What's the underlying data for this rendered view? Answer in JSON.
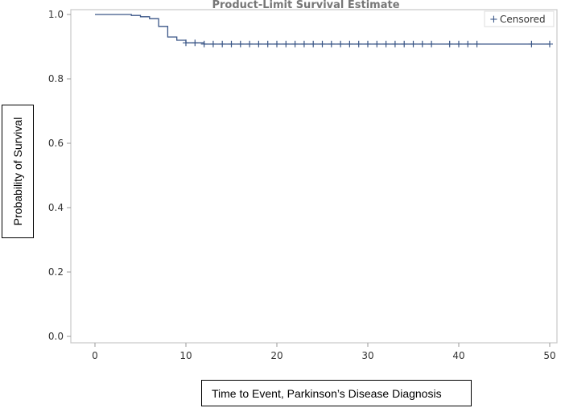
{
  "chart_data": {
    "type": "line",
    "title": "Product-Limit Survival Estimate",
    "xlabel": "Time to Event, Parkinson’s Disease Diagnosis",
    "ylabel": "Probability of Survival",
    "xlim": [
      0,
      50
    ],
    "ylim": [
      0,
      1
    ],
    "xticks": [
      "0",
      "10",
      "20",
      "30",
      "40",
      "50"
    ],
    "yticks": [
      "0.0",
      "0.2",
      "0.4",
      "0.6",
      "0.8",
      "1.0"
    ],
    "grid": false,
    "legend": {
      "position": "top-right",
      "entries": [
        "Censored"
      ]
    },
    "series_color": "#3a5687",
    "survival_steps": [
      {
        "x": 0,
        "y": 1.0
      },
      {
        "x": 4,
        "y": 0.997
      },
      {
        "x": 5,
        "y": 0.993
      },
      {
        "x": 6,
        "y": 0.987
      },
      {
        "x": 7,
        "y": 0.963
      },
      {
        "x": 8,
        "y": 0.93
      },
      {
        "x": 9,
        "y": 0.92
      },
      {
        "x": 10,
        "y": 0.912
      },
      {
        "x": 12,
        "y": 0.908
      }
    ],
    "end_x": 50,
    "censored_times": [
      10,
      11,
      12,
      13,
      14,
      15,
      16,
      17,
      18,
      19,
      20,
      21,
      22,
      23,
      24,
      25,
      26,
      27,
      28,
      29,
      30,
      31,
      32,
      33,
      34,
      35,
      36,
      37,
      39,
      40,
      41,
      42,
      48,
      50
    ]
  }
}
